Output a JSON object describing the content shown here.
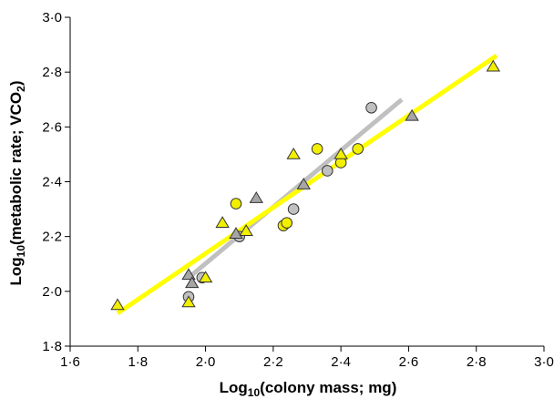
{
  "chart_data": {
    "type": "scatter",
    "title": "",
    "xlabel": {
      "pre": "Log",
      "sub": "10",
      "post": "(colony mass; mg)"
    },
    "ylabel": {
      "pre": "Log",
      "sub": "10",
      "mid": "(metabolic rate; VCO",
      "sub2": "2",
      "post": ")"
    },
    "xlim": [
      1.6,
      3.0
    ],
    "ylim": [
      1.8,
      3.0
    ],
    "xticks": [
      {
        "value": 1.6,
        "label": "1·6"
      },
      {
        "value": 1.8,
        "label": "1·8"
      },
      {
        "value": 2.0,
        "label": "2·0"
      },
      {
        "value": 2.2,
        "label": "2·2"
      },
      {
        "value": 2.4,
        "label": "2·4"
      },
      {
        "value": 2.6,
        "label": "2·6"
      },
      {
        "value": 2.8,
        "label": "2·8"
      },
      {
        "value": 3.0,
        "label": "3·0"
      }
    ],
    "yticks": [
      {
        "value": 1.8,
        "label": "1·8"
      },
      {
        "value": 2.0,
        "label": "2·0"
      },
      {
        "value": 2.2,
        "label": "2·2"
      },
      {
        "value": 2.4,
        "label": "2·4"
      },
      {
        "value": 2.6,
        "label": "2·6"
      },
      {
        "value": 2.8,
        "label": "2·8"
      },
      {
        "value": 3.0,
        "label": "3·0"
      }
    ],
    "grid": false,
    "series": [
      {
        "marker": "circle",
        "color": "#c0c0c0",
        "points": [
          [
            1.95,
            1.98
          ],
          [
            1.99,
            2.05
          ],
          [
            2.1,
            2.2
          ],
          [
            2.26,
            2.3
          ],
          [
            2.36,
            2.44
          ],
          [
            2.49,
            2.67
          ]
        ]
      },
      {
        "marker": "triangle",
        "color": "#a6a6a6",
        "points": [
          [
            1.95,
            2.06
          ],
          [
            1.96,
            2.03
          ],
          [
            2.09,
            2.21
          ],
          [
            2.15,
            2.34
          ],
          [
            2.29,
            2.39
          ],
          [
            2.61,
            2.64
          ]
        ]
      },
      {
        "marker": "circle",
        "color": "#f2ef00",
        "points": [
          [
            2.09,
            2.32
          ],
          [
            2.23,
            2.24
          ],
          [
            2.24,
            2.25
          ],
          [
            2.33,
            2.52
          ],
          [
            2.4,
            2.47
          ],
          [
            2.45,
            2.52
          ]
        ]
      },
      {
        "marker": "triangle",
        "color": "#f2ef00",
        "points": [
          [
            1.74,
            1.95
          ],
          [
            1.95,
            1.96
          ],
          [
            2.0,
            2.05
          ],
          [
            2.05,
            2.25
          ],
          [
            2.12,
            2.22
          ],
          [
            2.26,
            2.5
          ],
          [
            2.4,
            2.5
          ],
          [
            2.85,
            2.82
          ]
        ]
      }
    ],
    "fit_lines": [
      {
        "color": "#c0c0c0",
        "x": [
          1.96,
          2.58
        ],
        "y": [
          2.06,
          2.7
        ]
      },
      {
        "color": "#ffff00",
        "x": [
          1.74,
          2.86
        ],
        "y": [
          1.92,
          2.86
        ]
      }
    ]
  }
}
